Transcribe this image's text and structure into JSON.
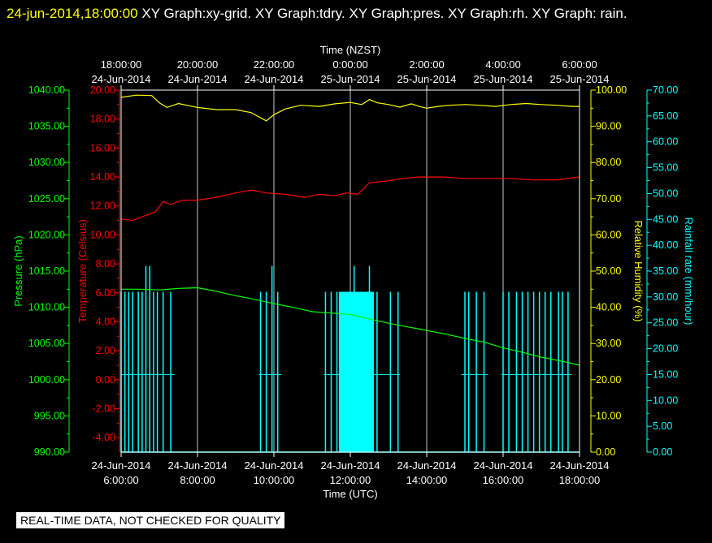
{
  "header": {
    "timestamp": "24-jun-2014,18:00:00",
    "graphs": "XY Graph:xy-grid.  XY Graph:tdry.  XY Graph:pres.  XY Graph:rh.  XY Graph: rain."
  },
  "banner": "REAL-TIME DATA, NOT CHECKED FOR QUALITY",
  "chart_data": {
    "type": "line",
    "top_axis_title": "Time (NZST)",
    "bottom_axis_title": "Time (UTC)",
    "x_range_utc_hours": [
      6,
      18
    ],
    "x_ticks_top": [
      {
        "time": "18:00:00",
        "date": "24-Jun-2014"
      },
      {
        "time": "20:00:00",
        "date": "24-Jun-2014"
      },
      {
        "time": "22:00:00",
        "date": "24-Jun-2014"
      },
      {
        "time": "0:00:00",
        "date": "25-Jun-2014"
      },
      {
        "time": "2:00:00",
        "date": "25-Jun-2014"
      },
      {
        "time": "4:00:00",
        "date": "25-Jun-2014"
      },
      {
        "time": "6:00:00",
        "date": "25-Jun-2014"
      }
    ],
    "x_ticks_bottom": [
      {
        "date": "24-Jun-2014",
        "time": "6:00:00"
      },
      {
        "date": "24-Jun-2014",
        "time": "8:00:00"
      },
      {
        "date": "24-Jun-2014",
        "time": "10:00:00"
      },
      {
        "date": "24-Jun-2014",
        "time": "12:00:00"
      },
      {
        "date": "24-Jun-2014",
        "time": "14:00:00"
      },
      {
        "date": "24-Jun-2014",
        "time": "16:00:00"
      },
      {
        "date": "24-Jun-2014",
        "time": "18:00:00"
      }
    ],
    "axes": {
      "pressure": {
        "label": "Pressure (hPa)",
        "color": "#00ff00",
        "ylim": [
          990,
          1040
        ],
        "side": "left-outer",
        "ticks": [
          "990.00",
          "995.00",
          "1000.00",
          "1005.00",
          "1010.00",
          "1015.00",
          "1020.00",
          "1025.00",
          "1030.00",
          "1035.00",
          "1040.00"
        ]
      },
      "temperature": {
        "label": "Temperature (Celsius)",
        "color": "#ff0000",
        "ylim": [
          -5,
          20
        ],
        "side": "left-inner",
        "ticks": [
          "-4.00",
          "-2.00",
          "0.00",
          "2.00",
          "4.00",
          "6.00",
          "8.00",
          "10.00",
          "12.00",
          "14.00",
          "16.00",
          "18.00",
          "20.00"
        ]
      },
      "humidity": {
        "label": "Relative Humidity (%)",
        "color": "#ffff00",
        "ylim": [
          0,
          100
        ],
        "side": "right-inner",
        "ticks": [
          "0.00",
          "10.00",
          "20.00",
          "30.00",
          "40.00",
          "50.00",
          "60.00",
          "70.00",
          "80.00",
          "90.00",
          "100.00"
        ]
      },
      "rain": {
        "label": "Rainfall rate (mm/hour)",
        "color": "#00ffff",
        "ylim": [
          0,
          70
        ],
        "side": "right-outer",
        "ticks": [
          "0.00",
          "5.00",
          "10.00",
          "15.00",
          "20.00",
          "25.00",
          "30.00",
          "35.00",
          "40.00",
          "45.00",
          "50.00",
          "55.00",
          "60.00",
          "65.00",
          "70.00"
        ]
      }
    },
    "series": [
      {
        "name": "tdry",
        "axis": "temperature",
        "x": [
          6.0,
          6.3,
          6.6,
          6.9,
          7.1,
          7.3,
          7.6,
          8.0,
          8.5,
          9.0,
          9.4,
          9.8,
          10.3,
          10.8,
          11.2,
          11.6,
          11.9,
          12.2,
          12.5,
          12.9,
          13.4,
          13.8,
          14.4,
          15.0,
          15.6,
          16.2,
          16.8,
          17.4,
          18.0
        ],
        "y": [
          11.1,
          11.0,
          11.3,
          11.6,
          12.3,
          12.1,
          12.4,
          12.4,
          12.6,
          12.9,
          13.1,
          12.9,
          12.8,
          12.6,
          12.8,
          12.7,
          12.9,
          12.8,
          13.6,
          13.7,
          13.9,
          14.0,
          14.0,
          13.9,
          13.9,
          13.9,
          13.8,
          13.8,
          14.0
        ]
      },
      {
        "name": "pres",
        "axis": "pressure",
        "x": [
          6.0,
          6.5,
          7.0,
          7.5,
          8.0,
          8.5,
          9.0,
          9.5,
          10.0,
          10.5,
          11.0,
          11.5,
          12.0,
          12.5,
          13.0,
          13.5,
          14.0,
          14.5,
          15.0,
          15.5,
          16.0,
          16.5,
          17.0,
          17.5,
          18.0
        ],
        "y": [
          1012.5,
          1012.5,
          1012.4,
          1012.6,
          1012.7,
          1012.2,
          1011.6,
          1011.1,
          1010.5,
          1010.0,
          1009.4,
          1009.2,
          1009.0,
          1008.4,
          1007.8,
          1007.3,
          1006.8,
          1006.3,
          1005.7,
          1005.2,
          1004.4,
          1003.8,
          1003.1,
          1002.6,
          1002.0
        ]
      },
      {
        "name": "rh",
        "axis": "humidity",
        "x": [
          6.0,
          6.4,
          6.8,
          7.0,
          7.2,
          7.5,
          8.0,
          8.5,
          9.0,
          9.4,
          9.8,
          10.0,
          10.3,
          10.7,
          11.2,
          11.6,
          12.0,
          12.3,
          12.5,
          12.7,
          13.0,
          13.3,
          13.6,
          13.8,
          14.0,
          14.3,
          14.6,
          15.0,
          15.4,
          15.8,
          16.2,
          16.6,
          17.0,
          17.4,
          17.8,
          18.0
        ],
        "y": [
          98.0,
          98.6,
          98.5,
          96.5,
          95.2,
          96.3,
          95.2,
          94.6,
          94.6,
          93.8,
          91.5,
          93.2,
          94.8,
          95.8,
          95.5,
          96.2,
          96.6,
          96.0,
          97.4,
          96.5,
          96.0,
          95.3,
          96.2,
          95.5,
          95.0,
          95.5,
          95.8,
          96.0,
          95.8,
          95.5,
          96.0,
          96.3,
          96.0,
          95.8,
          95.5,
          95.5
        ]
      }
    ],
    "rain": {
      "name": "rain",
      "axis": "rain",
      "times": [
        6.0,
        6.1,
        6.2,
        6.3,
        6.45,
        6.55,
        6.65,
        6.75,
        6.85,
        6.95,
        7.1,
        7.3,
        9.65,
        9.8,
        9.95,
        10.1,
        11.35,
        11.5,
        11.65,
        11.8,
        11.9,
        12.0,
        12.1,
        12.2,
        12.3,
        12.4,
        12.5,
        12.6,
        12.7,
        13.05,
        13.25,
        15.0,
        15.1,
        15.3,
        15.5,
        16.0,
        16.15,
        16.35,
        16.5,
        16.65,
        16.8,
        16.95,
        17.1,
        17.25,
        17.45,
        17.55,
        17.7
      ],
      "values": [
        31,
        31,
        31,
        31,
        31,
        31,
        36,
        36,
        31,
        31,
        31,
        31,
        31,
        31,
        36,
        31,
        31,
        31,
        31,
        31,
        31,
        31,
        36,
        31,
        31,
        31,
        36,
        31,
        31,
        31,
        31,
        31,
        31,
        31,
        31,
        31,
        31,
        31,
        31,
        31,
        31,
        31,
        31,
        31,
        31,
        31,
        31
      ],
      "dense_spans": [
        [
          11.7,
          12.6
        ]
      ],
      "baseline": 15
    }
  }
}
